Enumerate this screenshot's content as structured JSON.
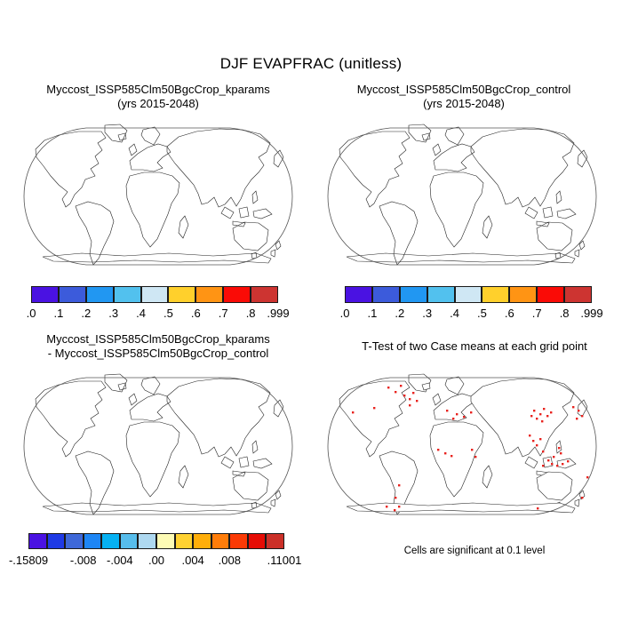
{
  "figure": {
    "title": "DJF EVAPFRAC (unitless)"
  },
  "panels": {
    "top_left": {
      "title": "Myccost_ISSP585Clm50BgcCrop_kparams",
      "subtitle": "(yrs 2015-2048)"
    },
    "top_right": {
      "title": "Myccost_ISSP585Clm50BgcCrop_control",
      "subtitle": "(yrs 2015-2048)"
    },
    "bottom_left": {
      "title": "Myccost_ISSP585Clm50BgcCrop_kparams",
      "subtitle": "- Myccost_ISSP585Clm50BgcCrop_control"
    },
    "bottom_right": {
      "title": "T-Test of two Case means at each grid point",
      "caption": "Cells are significant at 0.1 level"
    }
  },
  "colorbars": {
    "evapfrac": {
      "labels": [
        ".0",
        ".1",
        ".2",
        ".3",
        ".4",
        ".5",
        ".6",
        ".7",
        ".8",
        ".999"
      ],
      "colors": [
        "#4a12e2",
        "#3c5bdb",
        "#2197f2",
        "#52c1ee",
        "#cfe7f4",
        "#ffd02c",
        "#ff9414",
        "#fa0b06",
        "#cd3431"
      ]
    },
    "diff": {
      "labels": [
        "-.15809",
        "-.008",
        "-.004",
        ".00",
        ".004",
        ".008",
        ".11001"
      ],
      "fractions": [
        0,
        0.2143,
        0.3571,
        0.5,
        0.6429,
        0.7857,
        1
      ],
      "colors": [
        "#4a12e2",
        "#1f3ae5",
        "#3e68d8",
        "#1e86f5",
        "#06b1f2",
        "#57bdec",
        "#aed8f0",
        "#fdfbb5",
        "#ffd232",
        "#ffae0a",
        "#ff7d0a",
        "#fb3a05",
        "#e60d05",
        "#cb3028"
      ]
    }
  },
  "significance": {
    "marker_color": "#e8231f"
  },
  "chart_data": [
    {
      "type": "map",
      "panel": "top-left",
      "projection": "robinson",
      "title": "Myccost_ISSP585Clm50BgcCrop_kparams",
      "subtitle": "(yrs 2015-2048)",
      "variable": "DJF EVAPFRAC",
      "units": "unitless",
      "colorbar_tick_labels": [
        ".0",
        ".1",
        ".2",
        ".3",
        ".4",
        ".5",
        ".6",
        ".7",
        ".8",
        ".999"
      ],
      "colorbar_colors": [
        "#4a12e2",
        "#3c5bdb",
        "#2197f2",
        "#52c1ee",
        "#cfe7f4",
        "#ffd02c",
        "#ff9414",
        "#fa0b06",
        "#cd3431"
      ]
    },
    {
      "type": "map",
      "panel": "top-right",
      "projection": "robinson",
      "title": "Myccost_ISSP585Clm50BgcCrop_control",
      "subtitle": "(yrs 2015-2048)",
      "variable": "DJF EVAPFRAC",
      "units": "unitless",
      "colorbar_tick_labels": [
        ".0",
        ".1",
        ".2",
        ".3",
        ".4",
        ".5",
        ".6",
        ".7",
        ".8",
        ".999"
      ],
      "colorbar_colors": [
        "#4a12e2",
        "#3c5bdb",
        "#2197f2",
        "#52c1ee",
        "#cfe7f4",
        "#ffd02c",
        "#ff9414",
        "#fa0b06",
        "#cd3431"
      ]
    },
    {
      "type": "map-difference",
      "panel": "bottom-left",
      "projection": "robinson",
      "title": "Myccost_ISSP585Clm50BgcCrop_kparams - Myccost_ISSP585Clm50BgcCrop_control",
      "colorbar_tick_labels": [
        "-.15809",
        "-.008",
        "-.004",
        ".00",
        ".004",
        ".008",
        ".11001"
      ],
      "colorbar_colors": [
        "#4a12e2",
        "#1f3ae5",
        "#3e68d8",
        "#1e86f5",
        "#06b1f2",
        "#57bdec",
        "#aed8f0",
        "#fdfbb5",
        "#ffd232",
        "#ffae0a",
        "#ff7d0a",
        "#fb3a05",
        "#e60d05",
        "#cb3028"
      ]
    },
    {
      "type": "map-significance",
      "panel": "bottom-right",
      "projection": "robinson",
      "title": "T-Test of two Case means at each grid point",
      "caption": "Cells are significant at 0.1 level",
      "marker_color": "#e8231f"
    }
  ]
}
